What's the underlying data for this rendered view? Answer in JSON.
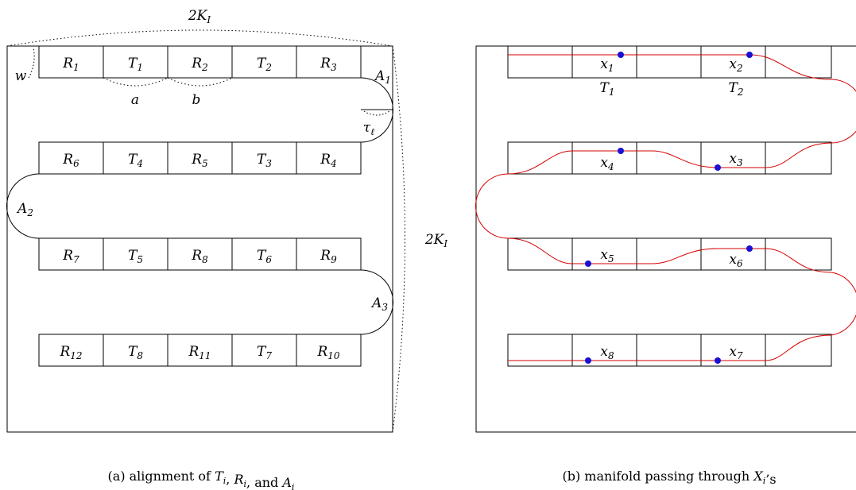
{
  "panel_a": {
    "width_label": "2K_I",
    "height_label": "2K_I",
    "w_label": "w",
    "a_label": "a",
    "b_label": "b",
    "tau_label": "τ_ℓ",
    "rows": [
      [
        "R_1",
        "T_1",
        "R_2",
        "T_2",
        "R_3"
      ],
      [
        "R_6",
        "T_4",
        "R_5",
        "T_3",
        "R_4"
      ],
      [
        "R_7",
        "T_5",
        "R_8",
        "T_6",
        "R_9"
      ],
      [
        "R_12",
        "T_8",
        "R_11",
        "T_7",
        "R_10"
      ]
    ],
    "arc_labels": [
      "A_1",
      "A_2",
      "A_3"
    ],
    "caption": "(a) alignment of T_i, R_i, and A_i"
  },
  "panel_b": {
    "points": [
      "x_1",
      "x_2",
      "x_3",
      "x_4",
      "x_5",
      "x_6",
      "x_7",
      "x_8"
    ],
    "t_labels": [
      "T_1",
      "T_2"
    ],
    "caption": "(b) manifold passing through X_i’s"
  },
  "colors": {
    "manifold": "#d40000",
    "point": "#1a0fd4",
    "line": "#000000"
  }
}
